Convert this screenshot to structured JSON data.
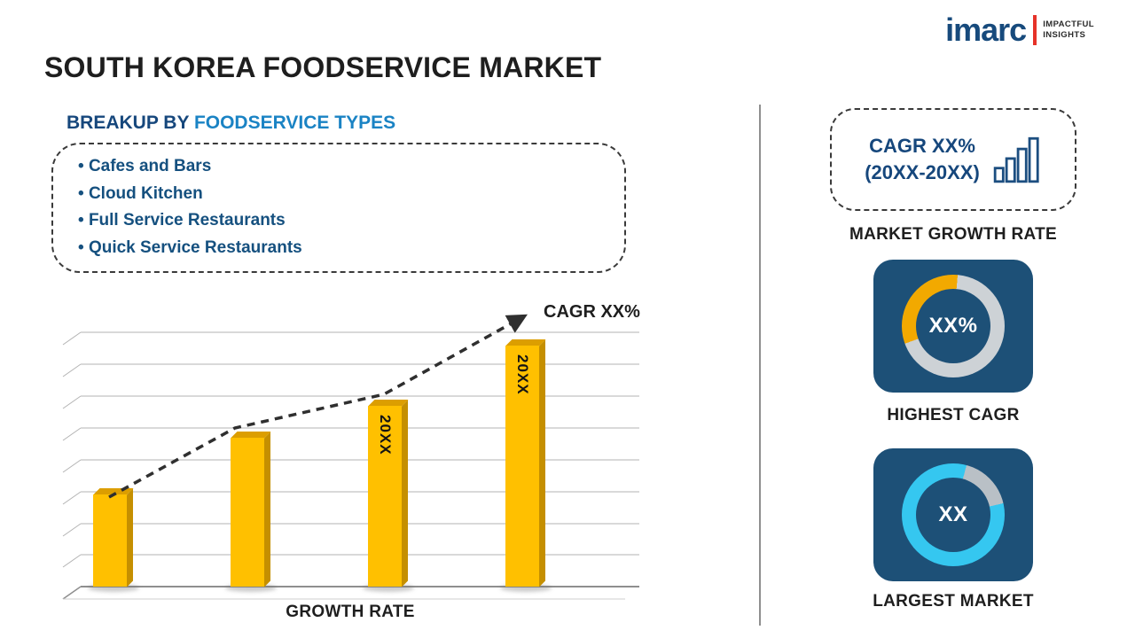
{
  "logo": {
    "brand": "imarc",
    "tagline_line1": "IMPACTFUL",
    "tagline_line2": "INSIGHTS"
  },
  "header": {
    "title": "SOUTH KOREA FOODSERVICE MARKET"
  },
  "breakup": {
    "heading_prefix": "BREAKUP BY ",
    "heading_highlight": "FOODSERVICE TYPES",
    "items": [
      "Cafes and Bars",
      "Cloud Kitchen",
      "Full Service Restaurants",
      "Quick Service Restaurants"
    ]
  },
  "chart_data": {
    "type": "bar",
    "title": "",
    "xlabel": "GROWTH RATE",
    "ylabel": "",
    "categories": [
      "",
      "",
      "20XX",
      "20XX"
    ],
    "values": [
      26,
      42,
      51,
      68
    ],
    "ylim": [
      0,
      100
    ],
    "grid": true,
    "bar_color": "#FFC000",
    "trend_line": {
      "style": "dashed-ascending-arrow",
      "label": "CAGR XX%"
    },
    "legend": false
  },
  "sidebar": {
    "cagr_card": {
      "line1": "CAGR XX%",
      "line2": "(20XX-20XX)",
      "icon": "ascending-bars-icon"
    },
    "market_growth_rate_label": "MARKET GROWTH RATE",
    "highest_cagr": {
      "value": "XX%",
      "label": "HIGHEST CAGR",
      "ring_accent": "#F2A900",
      "ring_base": "#CDD2D6"
    },
    "largest_market": {
      "value": "XX",
      "label": "LARGEST MARKET",
      "ring_accent": "#35C7F0",
      "ring_base": "#B9C0C6"
    }
  },
  "colors": {
    "navy": "#16477C",
    "highlight_blue": "#1A83C4",
    "tile_bg": "#1D5077",
    "bar": "#FFC000",
    "text": "#1E1E1E",
    "logo_red": "#E63329"
  }
}
